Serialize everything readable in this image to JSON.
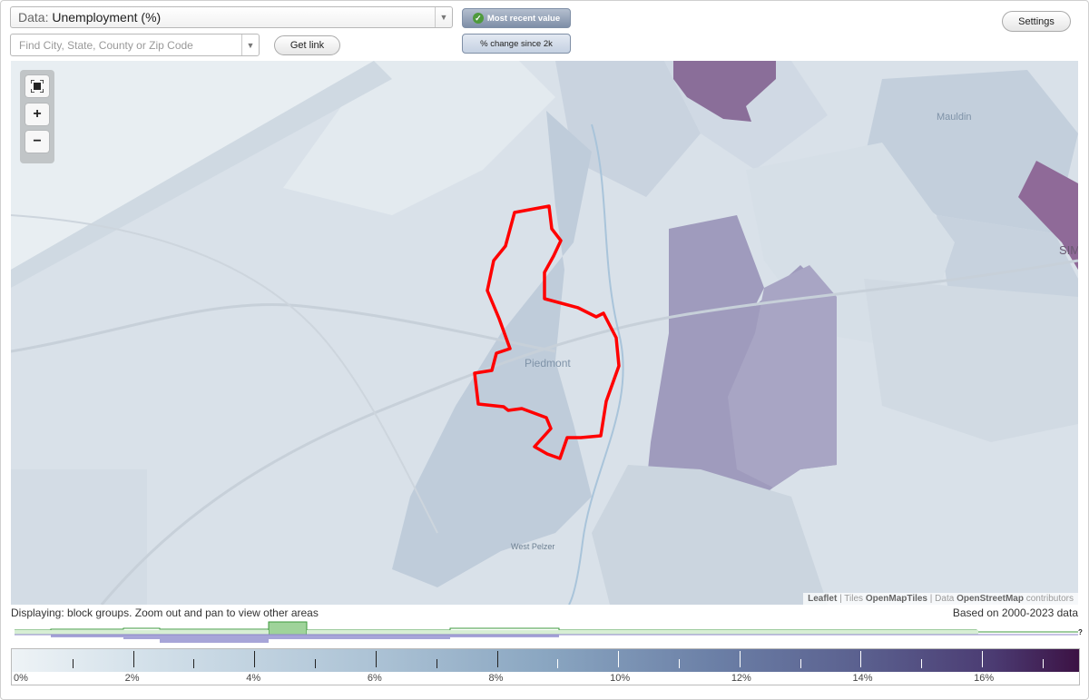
{
  "data_select": {
    "prefix": "Data:",
    "value": "Unemployment (%)"
  },
  "search": {
    "placeholder": "Find City, State, County or Zip Code",
    "value": ""
  },
  "buttons": {
    "get_link": "Get link",
    "settings": "Settings"
  },
  "toggles": {
    "most_recent": "Most recent value",
    "pct_change": "% change since 2k"
  },
  "zoom": {
    "fullscreen_icon": "fullscreen-icon",
    "zoom_in": "+",
    "zoom_out": "−"
  },
  "map_labels": {
    "mauldin": "Mauldin",
    "piedmont": "Piedmont",
    "west_pelzer": "West Pelzer",
    "sim": "SIM"
  },
  "attribution": {
    "leaflet": "Leaflet",
    "tiles_prefix": "| Tiles",
    "tiles": "OpenMapTiles",
    "data_prefix": "| Data",
    "data": "OpenStreetMap",
    "suffix": "contributors"
  },
  "status": {
    "displaying": "Displaying: block groups. Zoom out and pan to view other areas",
    "based_on": "Based on 2000-2023 data"
  },
  "legend": {
    "labels": [
      "0%",
      "2%",
      "4%",
      "6%",
      "8%",
      "10%",
      "12%",
      "14%",
      "16%"
    ],
    "range": [
      0,
      17.6
    ]
  },
  "histogram_help": "?",
  "colors": {
    "selection_outline": "#ff0000",
    "legend_low": "#eef3f6",
    "legend_high": "#3c1244"
  }
}
